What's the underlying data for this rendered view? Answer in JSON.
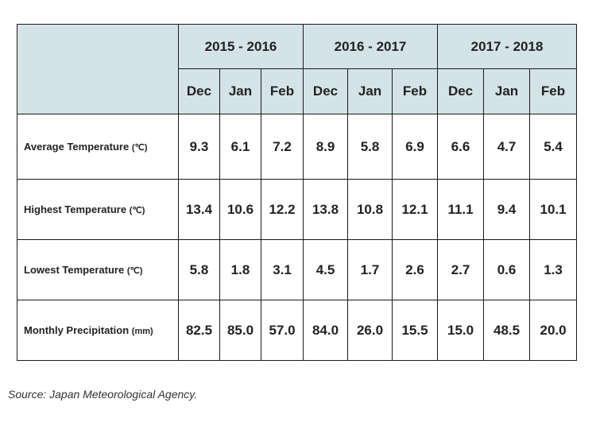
{
  "seasons": [
    "2015 - 2016",
    "2016 - 2017",
    "2017 - 2018"
  ],
  "months": [
    "Dec",
    "Jan",
    "Feb",
    "Dec",
    "Jan",
    "Feb",
    "Dec",
    "Jan",
    "Feb"
  ],
  "rows": [
    {
      "label": "Average Temperature",
      "unit": "(℃)",
      "values": [
        "9.3",
        "6.1",
        "7.2",
        "8.9",
        "5.8",
        "6.9",
        "6.6",
        "4.7",
        "5.4"
      ]
    },
    {
      "label": "Highest Temperature",
      "unit": "(℃)",
      "values": [
        "13.4",
        "10.6",
        "12.2",
        "13.8",
        "10.8",
        "12.1",
        "11.1",
        "9.4",
        "10.1"
      ]
    },
    {
      "label": "Lowest Temperature",
      "unit": "(℃)",
      "values": [
        "5.8",
        "1.8",
        "3.1",
        "4.5",
        "1.7",
        "2.6",
        "2.7",
        "0.6",
        "1.3"
      ]
    },
    {
      "label": "Monthly Precipitation",
      "unit": "(mm)",
      "values": [
        "82.5",
        "85.0",
        "57.0",
        "84.0",
        "26.0",
        "15.5",
        "15.0",
        "48.5",
        "20.0"
      ]
    }
  ],
  "source": "Source: Japan Meteorological Agency.",
  "colors": {
    "header_bg": "#d4e4e6",
    "border": "#1a1a1a"
  }
}
